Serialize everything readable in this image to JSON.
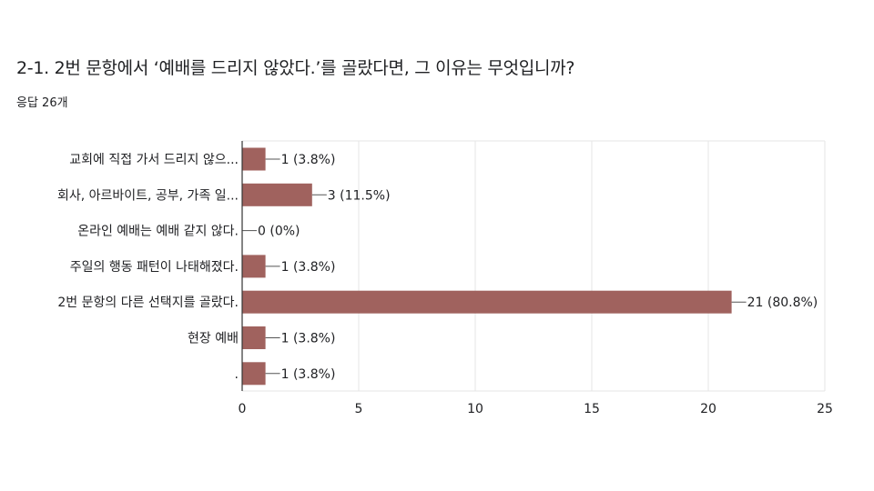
{
  "question": {
    "title": "2-1. 2번 문항에서 ‘예배를 드리지 않았다.’를 골랐다면, 그 이유는 무엇입니까?",
    "response_count": "응답 26개"
  },
  "colors": {
    "bar": "#a0625e",
    "grid": "#e6e6e6",
    "axis": "#333333",
    "text": "#202124"
  },
  "chart_data": {
    "type": "bar",
    "orientation": "horizontal",
    "categories": [
      "교회에 직접 가서 드리지 않으...",
      "회사, 아르바이트, 공부, 가족 일...",
      "온라인 예배는 예배 같지 않다.",
      "주일의 행동 패턴이 나태해졌다.",
      "2번 문항의 다른 선택지를 골랐다.",
      "현장 예배",
      "."
    ],
    "values": [
      1,
      3,
      0,
      1,
      21,
      1,
      1
    ],
    "data_labels": [
      "1 (3.8%)",
      "3 (11.5%)",
      "0 (0%)",
      "1 (3.8%)",
      "21 (80.8%)",
      "1 (3.8%)",
      "1 (3.8%)"
    ],
    "xlim": [
      0,
      25
    ],
    "xticks": [
      0,
      5,
      10,
      15,
      20,
      25
    ],
    "xlabel": "",
    "ylabel": "",
    "grid": true
  }
}
